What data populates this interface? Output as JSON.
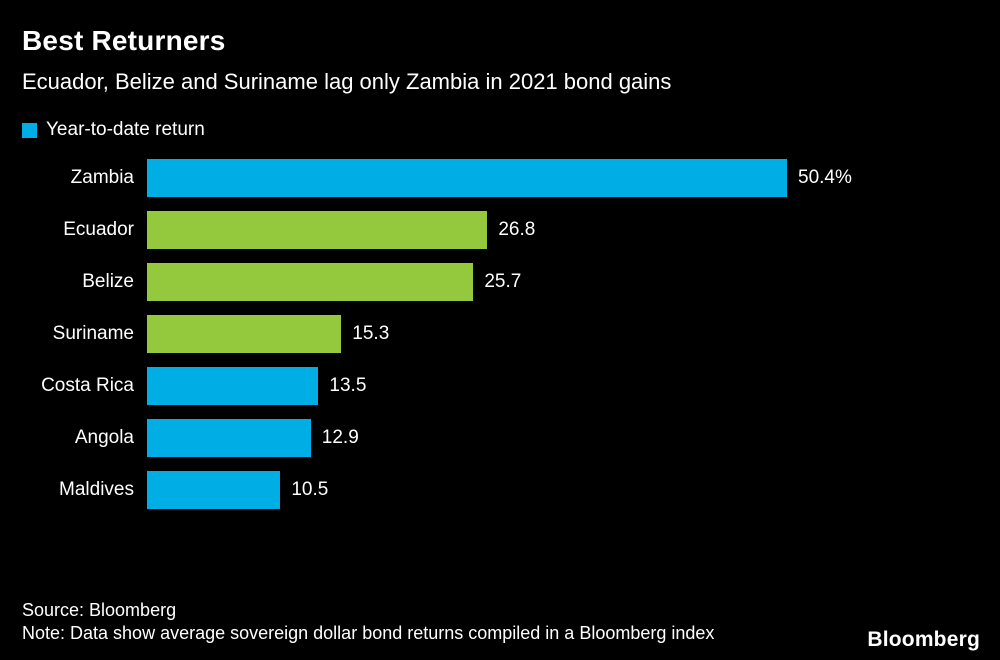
{
  "colors": {
    "background": "#000000",
    "text": "#ffffff",
    "cyan": "#00aee6",
    "green": "#95c93d"
  },
  "header": {
    "title": "Best Returners",
    "subtitle": "Ecuador, Belize and Suriname lag only Zambia in 2021 bond gains"
  },
  "legend": {
    "label": "Year-to-date return",
    "swatch_color": "#00aee6"
  },
  "chart_data": {
    "type": "bar",
    "orientation": "horizontal",
    "title": "Best Returners",
    "subtitle": "Ecuador, Belize and Suriname lag only Zambia in 2021 bond gains",
    "legend": [
      "Year-to-date return"
    ],
    "legend_position": "top-left",
    "grid": false,
    "categories": [
      "Zambia",
      "Ecuador",
      "Belize",
      "Suriname",
      "Costa Rica",
      "Angola",
      "Maldives"
    ],
    "values": [
      50.4,
      26.8,
      25.7,
      15.3,
      13.5,
      12.9,
      10.5
    ],
    "value_labels": [
      "50.4%",
      "26.8",
      "25.7",
      "15.3",
      "13.5",
      "12.9",
      "10.5"
    ],
    "bar_colors": [
      "#00aee6",
      "#95c93d",
      "#95c93d",
      "#95c93d",
      "#00aee6",
      "#00aee6",
      "#00aee6"
    ],
    "xlim": [
      0,
      50.4
    ],
    "xlabel": "",
    "ylabel": ""
  },
  "footer": {
    "source": "Source: Bloomberg",
    "note": "Note: Data show average sovereign dollar bond returns compiled in a Bloomberg index",
    "brand": "Bloomberg"
  }
}
